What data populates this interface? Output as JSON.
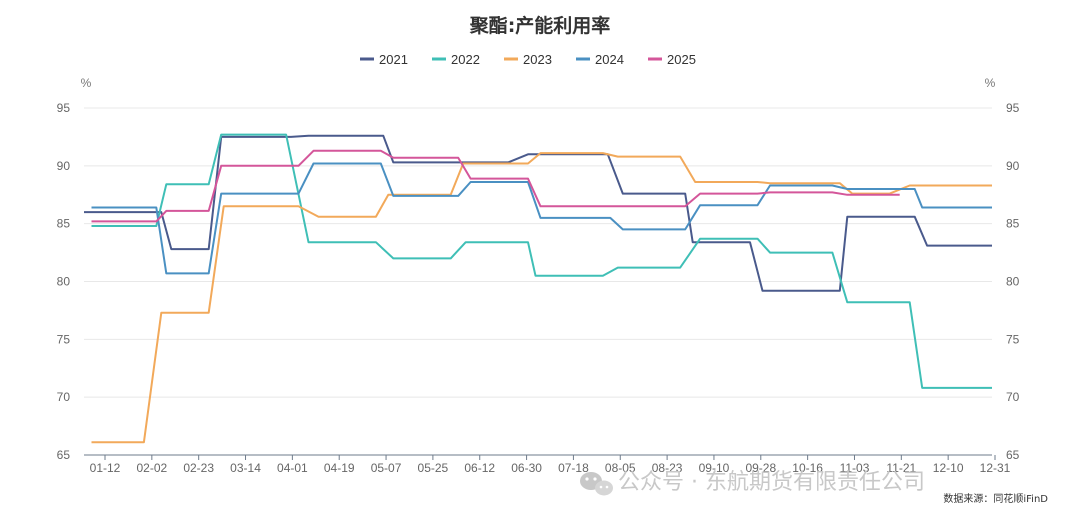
{
  "chart_data": {
    "type": "line",
    "title": "聚酯:产能利用率",
    "y_unit_left": "%",
    "y_unit_right": "%",
    "ylim": [
      65,
      95
    ],
    "y_ticks": [
      65,
      70,
      75,
      80,
      85,
      90,
      95
    ],
    "grid": true,
    "legend_position": "top",
    "x_ticks": [
      "01-12",
      "02-02",
      "02-23",
      "03-14",
      "04-01",
      "04-19",
      "05-07",
      "05-25",
      "06-12",
      "06-30",
      "07-18",
      "08-05",
      "08-23",
      "09-10",
      "09-28",
      "10-16",
      "11-03",
      "11-21",
      "12-10",
      "12-31"
    ],
    "series": [
      {
        "name": "2021",
        "color": "#4a5a8c",
        "points": [
          [
            "01-01",
            86.0
          ],
          [
            "02-01",
            86.0
          ],
          [
            "02-05",
            82.8
          ],
          [
            "02-20",
            82.8
          ],
          [
            "02-25",
            92.5
          ],
          [
            "03-25",
            92.5
          ],
          [
            "04-01",
            92.6
          ],
          [
            "05-01",
            92.6
          ],
          [
            "05-05",
            90.3
          ],
          [
            "06-20",
            90.3
          ],
          [
            "06-28",
            91.0
          ],
          [
            "07-30",
            91.0
          ],
          [
            "08-05",
            87.6
          ],
          [
            "08-30",
            87.6
          ],
          [
            "09-02",
            83.4
          ],
          [
            "09-25",
            83.4
          ],
          [
            "09-30",
            79.2
          ],
          [
            "10-31",
            79.2
          ],
          [
            "11-03",
            85.6
          ],
          [
            "11-30",
            85.6
          ],
          [
            "12-05",
            83.1
          ],
          [
            "12-31",
            83.1
          ]
        ]
      },
      {
        "name": "2022",
        "color": "#3fbfb6",
        "points": [
          [
            "01-04",
            84.8
          ],
          [
            "01-30",
            84.8
          ],
          [
            "02-03",
            88.4
          ],
          [
            "02-20",
            88.4
          ],
          [
            "02-25",
            92.7
          ],
          [
            "03-23",
            92.7
          ],
          [
            "04-01",
            83.4
          ],
          [
            "04-28",
            83.4
          ],
          [
            "05-05",
            82.0
          ],
          [
            "05-28",
            82.0
          ],
          [
            "06-03",
            83.4
          ],
          [
            "06-28",
            83.4
          ],
          [
            "07-01",
            80.5
          ],
          [
            "07-28",
            80.5
          ],
          [
            "08-03",
            81.2
          ],
          [
            "08-28",
            81.2
          ],
          [
            "09-05",
            83.7
          ],
          [
            "09-28",
            83.7
          ],
          [
            "10-03",
            82.5
          ],
          [
            "10-28",
            82.5
          ],
          [
            "11-03",
            78.2
          ],
          [
            "11-28",
            78.2
          ],
          [
            "12-03",
            70.8
          ],
          [
            "12-31",
            70.8
          ]
        ]
      },
      {
        "name": "2023",
        "color": "#f2a95a",
        "points": [
          [
            "01-04",
            66.1
          ],
          [
            "01-25",
            66.1
          ],
          [
            "02-01",
            77.3
          ],
          [
            "02-20",
            77.3
          ],
          [
            "02-26",
            86.5
          ],
          [
            "03-28",
            86.5
          ],
          [
            "04-05",
            85.6
          ],
          [
            "04-28",
            85.6
          ],
          [
            "05-03",
            87.5
          ],
          [
            "05-28",
            87.5
          ],
          [
            "06-02",
            90.2
          ],
          [
            "06-28",
            90.2
          ],
          [
            "07-03",
            91.1
          ],
          [
            "07-28",
            91.1
          ],
          [
            "08-03",
            90.8
          ],
          [
            "08-28",
            90.8
          ],
          [
            "09-03",
            88.6
          ],
          [
            "09-28",
            88.6
          ],
          [
            "10-03",
            88.5
          ],
          [
            "10-31",
            88.5
          ],
          [
            "11-05",
            87.6
          ],
          [
            "11-20",
            87.6
          ],
          [
            "11-28",
            88.3
          ],
          [
            "12-31",
            88.3
          ]
        ]
      },
      {
        "name": "2024",
        "color": "#4a90c2",
        "points": [
          [
            "01-04",
            86.4
          ],
          [
            "01-30",
            86.4
          ],
          [
            "02-03",
            80.7
          ],
          [
            "02-20",
            80.7
          ],
          [
            "02-25",
            87.6
          ],
          [
            "03-28",
            87.6
          ],
          [
            "04-03",
            90.2
          ],
          [
            "04-30",
            90.2
          ],
          [
            "05-05",
            87.4
          ],
          [
            "05-31",
            87.4
          ],
          [
            "06-05",
            88.6
          ],
          [
            "06-28",
            88.6
          ],
          [
            "07-03",
            85.5
          ],
          [
            "07-31",
            85.5
          ],
          [
            "08-05",
            84.5
          ],
          [
            "08-30",
            84.5
          ],
          [
            "09-05",
            86.6
          ],
          [
            "09-28",
            86.6
          ],
          [
            "10-03",
            88.3
          ],
          [
            "10-28",
            88.3
          ],
          [
            "11-03",
            88.0
          ],
          [
            "11-30",
            88.0
          ],
          [
            "12-03",
            86.4
          ],
          [
            "12-31",
            86.4
          ]
        ]
      },
      {
        "name": "2025",
        "color": "#d4569a",
        "points": [
          [
            "01-04",
            85.2
          ],
          [
            "01-30",
            85.2
          ],
          [
            "02-03",
            86.1
          ],
          [
            "02-20",
            86.1
          ],
          [
            "02-25",
            90.0
          ],
          [
            "03-28",
            90.0
          ],
          [
            "04-03",
            91.3
          ],
          [
            "04-30",
            91.3
          ],
          [
            "05-05",
            90.7
          ],
          [
            "05-31",
            90.7
          ],
          [
            "06-05",
            88.9
          ],
          [
            "06-28",
            88.9
          ],
          [
            "07-03",
            86.5
          ],
          [
            "07-31",
            86.5
          ],
          [
            "08-05",
            86.5
          ],
          [
            "08-30",
            86.5
          ],
          [
            "09-05",
            87.6
          ],
          [
            "09-28",
            87.6
          ],
          [
            "10-03",
            87.7
          ],
          [
            "10-28",
            87.7
          ],
          [
            "11-03",
            87.5
          ],
          [
            "11-24",
            87.5
          ]
        ]
      }
    ]
  },
  "watermark": "公众号 · 东航期货有限责任公司",
  "source": "数据来源：同花顺iFinD"
}
